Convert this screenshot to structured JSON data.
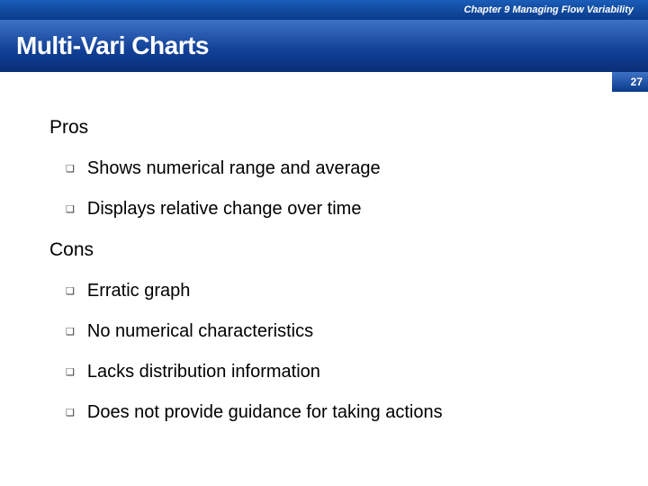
{
  "header": {
    "chapter": "Chapter 9  Managing Flow Variability",
    "title": "Multi-Vari Charts",
    "page_number": "27"
  },
  "colors": {
    "bar_gradient_top": "#3d72c6",
    "bar_gradient_bottom": "#0a3a8a",
    "title_gradient_top": "#3d72c6",
    "title_gradient_mid": "#103f95",
    "title_gradient_bottom": "#0a2f78",
    "text": "#000000",
    "header_text": "#ffffff",
    "background": "#ffffff"
  },
  "sections": {
    "pros": {
      "heading": "Pros",
      "items": [
        "Shows numerical range and average",
        "Displays relative change over time"
      ]
    },
    "cons": {
      "heading": "Cons",
      "items": [
        "Erratic graph",
        "No numerical characteristics",
        "Lacks distribution information",
        "Does not provide guidance for taking actions"
      ]
    }
  },
  "bullet_glyph": "❑"
}
